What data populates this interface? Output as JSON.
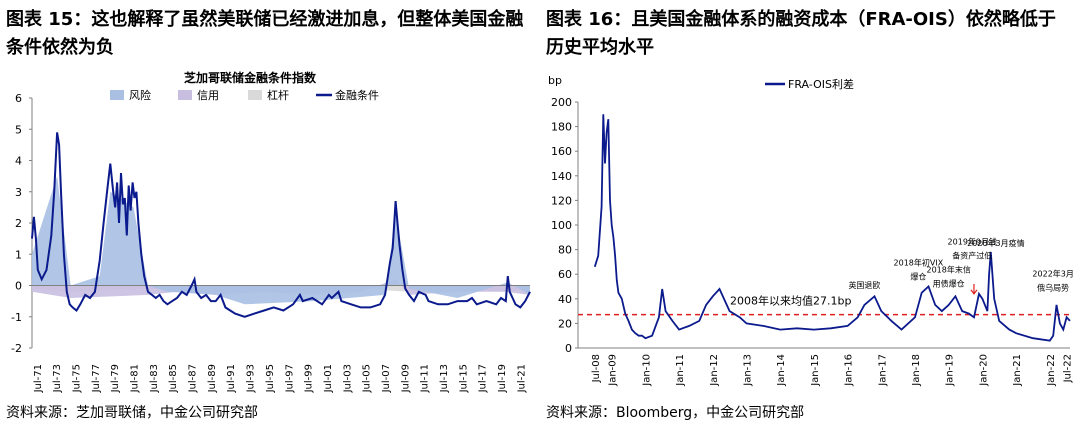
{
  "left": {
    "fig_title": "图表 15：这也解释了虽然美联储已经激进加息，但整体美国金融条件依然为负",
    "source": "资料来源：芝加哥联储，中金公司研究部"
  },
  "right": {
    "fig_title": "图表 16：且美国金融体系的融资成本（FRA-OIS）依然略低于历史平均水平",
    "source": "资料来源：Bloomberg，中金公司研究部"
  },
  "chart_data": [
    {
      "type": "area",
      "title": "芝加哥联储金融条件指数",
      "legend": [
        "风险",
        "信用",
        "杠杆",
        "金融条件"
      ],
      "legend_position": "top",
      "colors": {
        "risk": "#a9c0e3",
        "credit": "#c8bfe0",
        "leverage": "#d9d9d9",
        "nfci": "#0b1a8c"
      },
      "ylim": [
        -2,
        6
      ],
      "yticks": [
        -2,
        -1,
        0,
        1,
        2,
        3,
        4,
        5,
        6
      ],
      "xlim": [
        1971,
        2022.5
      ],
      "xticks": [
        "Jul-71",
        "Jul-73",
        "Jul-75",
        "Jul-77",
        "Jul-79",
        "Jul-81",
        "Jul-83",
        "Jul-85",
        "Jul-87",
        "Jul-89",
        "Jul-91",
        "Jul-93",
        "Jul-95",
        "Jul-97",
        "Jul-99",
        "Jul-01",
        "Jul-03",
        "Jul-05",
        "Jul-07",
        "Jul-09",
        "Jul-11",
        "Jul-13",
        "Jul-15",
        "Jul-17",
        "Jul-19",
        "Jul-21"
      ],
      "series": [
        {
          "name": "金融条件",
          "x": [
            1971.0,
            1971.2,
            1971.4,
            1971.6,
            1972.0,
            1972.5,
            1973.0,
            1973.3,
            1973.6,
            1973.8,
            1974.0,
            1974.3,
            1974.6,
            1974.9,
            1975.2,
            1975.6,
            1976.0,
            1976.5,
            1977.0,
            1977.5,
            1978.0,
            1978.4,
            1978.8,
            1979.1,
            1979.4,
            1979.6,
            1979.8,
            1980.0,
            1980.2,
            1980.4,
            1980.6,
            1980.8,
            1981.0,
            1981.2,
            1981.4,
            1981.6,
            1981.8,
            1982.0,
            1982.3,
            1982.6,
            1983.0,
            1983.4,
            1983.8,
            1984.2,
            1984.6,
            1985.0,
            1985.5,
            1986.0,
            1986.5,
            1987.0,
            1987.5,
            1987.8,
            1988.0,
            1988.5,
            1989.0,
            1989.5,
            1990.0,
            1990.5,
            1991.0,
            1991.5,
            1992.0,
            1993.0,
            1994.0,
            1995.0,
            1996.0,
            1997.0,
            1998.0,
            1998.7,
            1999.0,
            2000.0,
            2001.0,
            2001.7,
            2002.0,
            2002.7,
            2003.0,
            2004.0,
            2005.0,
            2006.0,
            2007.0,
            2007.5,
            2007.8,
            2008.0,
            2008.3,
            2008.6,
            2008.8,
            2009.0,
            2009.3,
            2009.6,
            2010.0,
            2010.5,
            2011.0,
            2011.7,
            2012.0,
            2013.0,
            2014.0,
            2015.0,
            2016.0,
            2016.5,
            2017.0,
            2018.0,
            2019.0,
            2019.5,
            2020.0,
            2020.2,
            2020.4,
            2020.7,
            2021.0,
            2021.5,
            2022.0,
            2022.5
          ],
          "values": [
            1.5,
            2.2,
            1.5,
            0.5,
            0.2,
            0.5,
            1.6,
            3.0,
            4.9,
            4.5,
            3.0,
            1.0,
            -0.2,
            -0.6,
            -0.7,
            -0.8,
            -0.6,
            -0.3,
            -0.4,
            -0.2,
            0.8,
            2.0,
            3.1,
            3.9,
            3.0,
            2.5,
            3.3,
            2.0,
            3.6,
            2.6,
            2.8,
            1.6,
            3.2,
            2.4,
            3.3,
            2.8,
            3.0,
            2.0,
            1.0,
            0.3,
            -0.2,
            -0.3,
            -0.4,
            -0.3,
            -0.5,
            -0.6,
            -0.5,
            -0.4,
            -0.2,
            -0.3,
            0.0,
            0.2,
            -0.2,
            -0.4,
            -0.3,
            -0.5,
            -0.5,
            -0.3,
            -0.7,
            -0.8,
            -0.9,
            -1.0,
            -0.9,
            -0.8,
            -0.7,
            -0.8,
            -0.6,
            -0.3,
            -0.5,
            -0.4,
            -0.6,
            -0.3,
            -0.4,
            -0.2,
            -0.5,
            -0.6,
            -0.7,
            -0.7,
            -0.6,
            -0.3,
            0.3,
            0.7,
            1.2,
            2.7,
            2.0,
            1.3,
            0.5,
            -0.1,
            -0.3,
            -0.5,
            -0.2,
            -0.3,
            -0.5,
            -0.6,
            -0.6,
            -0.5,
            -0.5,
            -0.4,
            -0.6,
            -0.5,
            -0.6,
            -0.4,
            -0.5,
            0.3,
            -0.2,
            -0.4,
            -0.6,
            -0.7,
            -0.5,
            -0.2
          ]
        },
        {
          "name": "风险",
          "x": [
            1971.0,
            1973.6,
            1975.0,
            1978.0,
            1979.1,
            1981.5,
            1983.0,
            1985.0,
            1990.0,
            1993.0,
            2000.0,
            2007.5,
            2008.6,
            2010.0,
            2015.0,
            2020.2,
            2022.5
          ],
          "values": [
            1.0,
            3.5,
            0.0,
            0.3,
            3.0,
            2.5,
            0.0,
            -0.2,
            -0.3,
            -0.6,
            -0.5,
            -0.3,
            2.3,
            -0.1,
            -0.4,
            0.1,
            -0.3
          ]
        },
        {
          "name": "信用",
          "x": [
            1971.0,
            1975.0,
            1983.0,
            1986.0,
            1990.0,
            1995.0,
            2000.0,
            2005.0,
            2008.6,
            2010.0,
            2015.0,
            2020.0,
            2022.5
          ],
          "values": [
            -0.2,
            -0.4,
            -0.3,
            -0.2,
            -0.3,
            -0.2,
            -0.3,
            -0.2,
            0.2,
            -0.3,
            -0.2,
            -0.2,
            -0.3
          ]
        },
        {
          "name": "杠杆",
          "x": [
            1971.0,
            1975.0,
            1983.0,
            1990.0,
            1995.0,
            2000.0,
            2005.0,
            2010.0,
            2015.0,
            2020.0,
            2022.5
          ],
          "values": [
            -0.1,
            -0.2,
            -0.1,
            -0.2,
            -0.1,
            -0.2,
            -0.1,
            -0.2,
            -0.1,
            -0.2,
            -0.1
          ]
        }
      ]
    },
    {
      "type": "line",
      "ylabel": "bp",
      "ylim": [
        0,
        200
      ],
      "yticks": [
        0,
        20,
        40,
        60,
        80,
        100,
        120,
        140,
        160,
        180,
        200
      ],
      "xlim": [
        2008.0,
        2022.6
      ],
      "xticks": [
        "Jul-08",
        "Jan-09",
        "Jan-10",
        "Jan-11",
        "Jan-12",
        "Jan-13",
        "Jan-14",
        "Jan-15",
        "Jan-16",
        "Jan-17",
        "Jan-18",
        "Jan-19",
        "Jan-20",
        "Jan-21",
        "Jan-22",
        "Jul-22"
      ],
      "xtick_pos": [
        2008.5,
        2009.0,
        2010.0,
        2011.0,
        2012.0,
        2013.0,
        2014.0,
        2015.0,
        2016.0,
        2017.0,
        2018.0,
        2019.0,
        2020.0,
        2021.0,
        2022.0,
        2022.5
      ],
      "legend": [
        "FRA-OIS利差"
      ],
      "legend_position": "top-left",
      "average": {
        "value": 27.1,
        "label": "2008年以来均值27.1bp"
      },
      "annotations": [
        {
          "text": [
            "英国退欧"
          ],
          "x": 2016.5,
          "y": 44
        },
        {
          "text": [
            "2018年初VIX",
            "爆仓"
          ],
          "x": 2018.1,
          "y": 51
        },
        {
          "text": [
            "2018年末信",
            "用债爆仓"
          ],
          "x": 2019.0,
          "y": 45
        },
        {
          "text": [
            "2019年9月钱",
            "备资产过低"
          ],
          "x": 2019.7,
          "y": 68
        },
        {
          "text": [
            "2020年3月疫情"
          ],
          "x": 2020.4,
          "y": 78
        },
        {
          "text": [
            "2022年3月",
            "俄乌局势"
          ],
          "x": 2022.1,
          "y": 42
        }
      ],
      "series": [
        {
          "name": "FRA-OIS利差",
          "x": [
            2008.5,
            2008.6,
            2008.7,
            2008.75,
            2008.8,
            2008.85,
            2008.9,
            2008.95,
            2009.0,
            2009.05,
            2009.1,
            2009.15,
            2009.2,
            2009.3,
            2009.4,
            2009.5,
            2009.6,
            2009.7,
            2009.8,
            2009.9,
            2010.0,
            2010.2,
            2010.4,
            2010.5,
            2010.6,
            2010.8,
            2011.0,
            2011.3,
            2011.6,
            2011.8,
            2012.0,
            2012.2,
            2012.5,
            2012.8,
            2013.0,
            2013.5,
            2014.0,
            2014.5,
            2015.0,
            2015.5,
            2016.0,
            2016.3,
            2016.5,
            2016.8,
            2017.0,
            2017.3,
            2017.6,
            2018.0,
            2018.2,
            2018.4,
            2018.6,
            2018.8,
            2019.0,
            2019.2,
            2019.4,
            2019.6,
            2019.75,
            2019.9,
            2020.0,
            2020.15,
            2020.2,
            2020.25,
            2020.35,
            2020.5,
            2020.8,
            2021.0,
            2021.5,
            2022.0,
            2022.1,
            2022.2,
            2022.3,
            2022.4,
            2022.5,
            2022.6
          ],
          "values": [
            66,
            75,
            115,
            190,
            150,
            175,
            186,
            120,
            100,
            90,
            75,
            55,
            45,
            40,
            28,
            22,
            15,
            12,
            10,
            10,
            8,
            10,
            25,
            48,
            30,
            22,
            15,
            18,
            22,
            35,
            42,
            48,
            30,
            25,
            20,
            18,
            15,
            16,
            15,
            16,
            18,
            25,
            35,
            42,
            30,
            22,
            15,
            25,
            45,
            50,
            35,
            30,
            35,
            42,
            30,
            28,
            25,
            44,
            40,
            30,
            60,
            78,
            40,
            22,
            15,
            12,
            8,
            6,
            10,
            35,
            20,
            15,
            25,
            22
          ]
        }
      ]
    }
  ]
}
